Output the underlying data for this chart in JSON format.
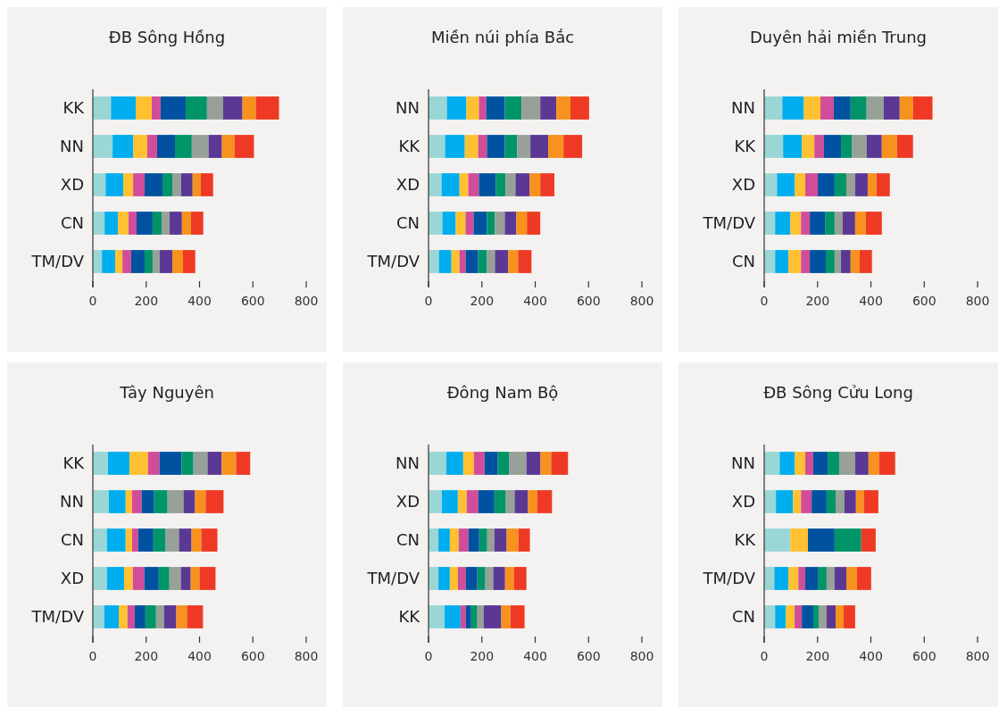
{
  "chart_data": [
    {
      "type": "bar",
      "orientation": "horizontal",
      "stacked": true,
      "title": "ĐB Sông Hồng",
      "categories": [
        "KK",
        "NN",
        "XD",
        "CN",
        "TM/DV"
      ],
      "xlim": [
        0,
        800
      ],
      "xticks": [
        0,
        200,
        400,
        600,
        800
      ],
      "series": [
        {
          "color": "#9ad6d6",
          "values": [
            68,
            74,
            48,
            44,
            34
          ]
        },
        {
          "color": "#00aeef",
          "values": [
            93,
            77,
            66,
            50,
            50
          ]
        },
        {
          "color": "#ffc132",
          "values": [
            60,
            53,
            37,
            40,
            27
          ]
        },
        {
          "color": "#d14d9a",
          "values": [
            33,
            37,
            43,
            30,
            33
          ]
        },
        {
          "color": "#0052a0",
          "values": [
            94,
            67,
            67,
            60,
            50
          ]
        },
        {
          "color": "#009469",
          "values": [
            80,
            63,
            37,
            34,
            30
          ]
        },
        {
          "color": "#97a198",
          "values": [
            60,
            63,
            33,
            30,
            27
          ]
        },
        {
          "color": "#5a3894",
          "values": [
            73,
            50,
            43,
            46,
            47
          ]
        },
        {
          "color": "#f7921e",
          "values": [
            50,
            47,
            30,
            34,
            40
          ]
        },
        {
          "color": "#ee3a24",
          "values": [
            87,
            73,
            47,
            46,
            46
          ]
        }
      ]
    },
    {
      "type": "bar",
      "orientation": "horizontal",
      "stacked": true,
      "title": "Miền núi phía Bắc",
      "categories": [
        "NN",
        "KK",
        "XD",
        "CN",
        "TM/DV"
      ],
      "xlim": [
        0,
        800
      ],
      "xticks": [
        0,
        200,
        400,
        600,
        800
      ],
      "series": [
        {
          "color": "#9ad6d6",
          "values": [
            69,
            62,
            49,
            52,
            39
          ]
        },
        {
          "color": "#00aeef",
          "values": [
            73,
            74,
            67,
            50,
            47
          ]
        },
        {
          "color": "#ffc132",
          "values": [
            47,
            50,
            33,
            37,
            30
          ]
        },
        {
          "color": "#d14d9a",
          "values": [
            27,
            33,
            40,
            30,
            23
          ]
        },
        {
          "color": "#0052a0",
          "values": [
            70,
            67,
            63,
            50,
            47
          ]
        },
        {
          "color": "#009469",
          "values": [
            63,
            46,
            37,
            30,
            33
          ]
        },
        {
          "color": "#97a198",
          "values": [
            70,
            50,
            37,
            37,
            30
          ]
        },
        {
          "color": "#5a3894",
          "values": [
            60,
            67,
            53,
            43,
            50
          ]
        },
        {
          "color": "#f7921e",
          "values": [
            53,
            57,
            40,
            40,
            37
          ]
        },
        {
          "color": "#ee3a24",
          "values": [
            70,
            70,
            53,
            50,
            50
          ]
        }
      ]
    },
    {
      "type": "bar",
      "orientation": "horizontal",
      "stacked": true,
      "title": "Duyên hải miền Trung",
      "categories": [
        "NN",
        "KK",
        "XD",
        "TM/DV",
        "CN"
      ],
      "xlim": [
        0,
        800
      ],
      "xticks": [
        0,
        200,
        400,
        600,
        800
      ],
      "series": [
        {
          "color": "#9ad6d6",
          "values": [
            68,
            71,
            48,
            41,
            41
          ]
        },
        {
          "color": "#00aeef",
          "values": [
            80,
            70,
            66,
            57,
            50
          ]
        },
        {
          "color": "#ffc132",
          "values": [
            63,
            47,
            40,
            40,
            47
          ]
        },
        {
          "color": "#d14d9a",
          "values": [
            50,
            36,
            47,
            33,
            33
          ]
        },
        {
          "color": "#0052a0",
          "values": [
            63,
            64,
            63,
            57,
            60
          ]
        },
        {
          "color": "#009469",
          "values": [
            60,
            40,
            44,
            36,
            33
          ]
        },
        {
          "color": "#97a198",
          "values": [
            64,
            56,
            33,
            30,
            24
          ]
        },
        {
          "color": "#5a3894",
          "values": [
            60,
            57,
            47,
            47,
            36
          ]
        },
        {
          "color": "#f7921e",
          "values": [
            50,
            57,
            33,
            40,
            34
          ]
        },
        {
          "color": "#ee3a24",
          "values": [
            73,
            60,
            50,
            60,
            46
          ]
        }
      ]
    },
    {
      "type": "bar",
      "orientation": "horizontal",
      "stacked": true,
      "title": "Tây Nguyên",
      "categories": [
        "KK",
        "NN",
        "CN",
        "XD",
        "TM/DV"
      ],
      "xlim": [
        0,
        800
      ],
      "xticks": [
        0,
        200,
        400,
        600,
        800
      ],
      "series": [
        {
          "color": "#9ad6d6",
          "values": [
            57,
            60,
            53,
            53,
            43
          ]
        },
        {
          "color": "#00aeef",
          "values": [
            80,
            63,
            70,
            64,
            54
          ]
        },
        {
          "color": "#ffc132",
          "values": [
            70,
            24,
            24,
            33,
            33
          ]
        },
        {
          "color": "#d14d9a",
          "values": [
            43,
            36,
            23,
            43,
            27
          ]
        },
        {
          "color": "#0052a0",
          "values": [
            83,
            47,
            57,
            54,
            40
          ]
        },
        {
          "color": "#009469",
          "values": [
            44,
            50,
            46,
            40,
            40
          ]
        },
        {
          "color": "#97a198",
          "values": [
            53,
            60,
            50,
            43,
            30
          ]
        },
        {
          "color": "#5a3894",
          "values": [
            53,
            43,
            47,
            37,
            46
          ]
        },
        {
          "color": "#f7921e",
          "values": [
            54,
            40,
            37,
            33,
            40
          ]
        },
        {
          "color": "#ee3a24",
          "values": [
            53,
            67,
            60,
            60,
            60
          ]
        }
      ]
    },
    {
      "type": "bar",
      "orientation": "horizontal",
      "stacked": true,
      "title": "Đông Nam Bộ",
      "categories": [
        "NN",
        "XD",
        "CN",
        "TM/DV",
        "KK"
      ],
      "xlim": [
        0,
        800
      ],
      "xticks": [
        0,
        200,
        400,
        600,
        800
      ],
      "series": [
        {
          "color": "#9ad6d6",
          "values": [
            67,
            50,
            37,
            37,
            60
          ]
        },
        {
          "color": "#00aeef",
          "values": [
            63,
            60,
            43,
            43,
            60
          ]
        },
        {
          "color": "#ffc132",
          "values": [
            40,
            33,
            33,
            30,
            null
          ]
        },
        {
          "color": "#d14d9a",
          "values": [
            40,
            44,
            37,
            30,
            20
          ]
        },
        {
          "color": "#0052a0",
          "values": [
            50,
            60,
            40,
            43,
            20
          ]
        },
        {
          "color": "#009469",
          "values": [
            43,
            43,
            30,
            30,
            23
          ]
        },
        {
          "color": "#97a198",
          "values": [
            64,
            33,
            27,
            30,
            24
          ]
        },
        {
          "color": "#5a3894",
          "values": [
            53,
            50,
            46,
            44,
            66
          ]
        },
        {
          "color": "#f7921e",
          "values": [
            40,
            34,
            44,
            33,
            34
          ]
        },
        {
          "color": "#ee3a24",
          "values": [
            63,
            56,
            43,
            47,
            53
          ]
        }
      ]
    },
    {
      "type": "bar",
      "orientation": "horizontal",
      "stacked": true,
      "title": "ĐB Sông Cửu Long",
      "categories": [
        "NN",
        "XD",
        "KK",
        "TM/DV",
        "CN"
      ],
      "xlim": [
        0,
        800
      ],
      "xticks": [
        0,
        200,
        400,
        600,
        800
      ],
      "series": [
        {
          "color": "#9ad6d6",
          "values": [
            58,
            44,
            98,
            38,
            41
          ]
        },
        {
          "color": "#00aeef",
          "values": [
            56,
            64,
            null,
            53,
            40
          ]
        },
        {
          "color": "#ffc132",
          "values": [
            40,
            30,
            66,
            37,
            33
          ]
        },
        {
          "color": "#d14d9a",
          "values": [
            30,
            40,
            null,
            26,
            27
          ]
        },
        {
          "color": "#0052a0",
          "values": [
            54,
            56,
            100,
            47,
            43
          ]
        },
        {
          "color": "#009469",
          "values": [
            43,
            34,
            100,
            33,
            20
          ]
        },
        {
          "color": "#97a198",
          "values": [
            60,
            33,
            null,
            30,
            30
          ]
        },
        {
          "color": "#5a3894",
          "values": [
            50,
            43,
            null,
            44,
            34
          ]
        },
        {
          "color": "#f7921e",
          "values": [
            40,
            30,
            null,
            40,
            30
          ]
        },
        {
          "color": "#ee3a24",
          "values": [
            60,
            54,
            54,
            53,
            43
          ]
        }
      ]
    }
  ]
}
